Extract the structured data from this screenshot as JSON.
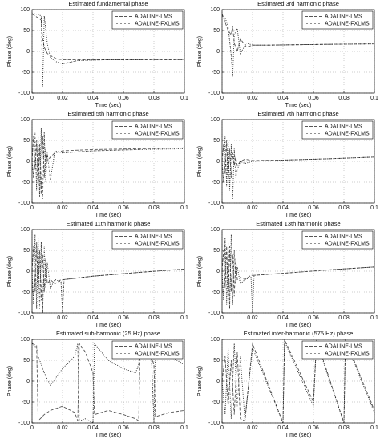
{
  "chart_data": [
    {
      "type": "line",
      "title": "Estimated fundamental phase",
      "xlabel": "Time (sec)",
      "ylabel": "Phase (deg)",
      "x": [
        0,
        0.002,
        0.004,
        0.006,
        0.007,
        0.008,
        0.01,
        0.012,
        0.016,
        0.02,
        0.03,
        0.05,
        0.07,
        0.1
      ],
      "series": [
        {
          "name": "ADALINE-LMS",
          "color": "#555555",
          "style": "dashed",
          "values": [
            90,
            85,
            80,
            75,
            30,
            10,
            -5,
            -10,
            -18,
            -20,
            -20,
            -20,
            -20,
            -20
          ]
        },
        {
          "name": "ADALINE-FXLMS",
          "color": "#222222",
          "style": "dotted",
          "values": [
            90,
            90,
            88,
            85,
            -85,
            85,
            20,
            -15,
            -25,
            -30,
            -22,
            -20,
            -20,
            -20
          ]
        }
      ],
      "xlim": [
        0,
        0.1
      ],
      "ylim": [
        -100,
        100
      ],
      "xticks": [
        0,
        0.02,
        0.04,
        0.06,
        0.08,
        0.1
      ],
      "yticks": [
        -100,
        -50,
        0,
        50,
        100
      ],
      "grid": true,
      "legend": "upper right"
    },
    {
      "type": "line",
      "title": "Estimated 3rd harmonic phase",
      "xlabel": "Time (sec)",
      "ylabel": "Phase (deg)",
      "x": [
        0,
        0.002,
        0.004,
        0.006,
        0.007,
        0.008,
        0.01,
        0.012,
        0.016,
        0.02,
        0.03,
        0.05,
        0.07,
        0.1
      ],
      "series": [
        {
          "name": "ADALINE-LMS",
          "color": "#555555",
          "style": "dashed",
          "values": [
            90,
            70,
            50,
            40,
            60,
            20,
            0,
            30,
            10,
            15,
            15,
            16,
            17,
            18
          ]
        },
        {
          "name": "ADALINE-FXLMS",
          "color": "#222222",
          "style": "dotted",
          "values": [
            85,
            80,
            60,
            -10,
            -60,
            40,
            55,
            -5,
            20,
            15,
            15,
            16,
            17,
            18
          ]
        }
      ],
      "xlim": [
        0,
        0.1
      ],
      "ylim": [
        -100,
        100
      ],
      "xticks": [
        0,
        0.02,
        0.04,
        0.06,
        0.08,
        0.1
      ],
      "yticks": [
        -100,
        -50,
        0,
        50,
        100
      ],
      "grid": true,
      "legend": "upper right"
    },
    {
      "type": "line",
      "title": "Estimated 5th harmonic phase",
      "xlabel": "Time (sec)",
      "ylabel": "Phase (deg)",
      "x": [
        0,
        0.001,
        0.002,
        0.003,
        0.004,
        0.005,
        0.006,
        0.007,
        0.008,
        0.009,
        0.01,
        0.012,
        0.015,
        0.02,
        0.04,
        0.07,
        0.1
      ],
      "series": [
        {
          "name": "ADALINE-LMS",
          "color": "#555555",
          "style": "dashed",
          "values": [
            0,
            60,
            -20,
            50,
            -60,
            40,
            -80,
            60,
            -40,
            30,
            0,
            10,
            20,
            25,
            28,
            30,
            32
          ]
        },
        {
          "name": "ADALINE-FXLMS",
          "color": "#222222",
          "style": "dotted",
          "values": [
            0,
            -40,
            70,
            -70,
            60,
            -85,
            80,
            -90,
            70,
            -50,
            20,
            -45,
            25,
            20,
            25,
            28,
            30
          ]
        }
      ],
      "xlim": [
        0,
        0.1
      ],
      "ylim": [
        -100,
        100
      ],
      "xticks": [
        0,
        0.02,
        0.04,
        0.06,
        0.08,
        0.1
      ],
      "yticks": [
        -100,
        -50,
        0,
        50,
        100
      ],
      "grid": true,
      "legend": "upper right"
    },
    {
      "type": "line",
      "title": "Estimated 7th harmonic phase",
      "xlabel": "Time (sec)",
      "ylabel": "Phase (deg)",
      "x": [
        0,
        0.001,
        0.002,
        0.003,
        0.004,
        0.005,
        0.006,
        0.007,
        0.008,
        0.009,
        0.01,
        0.012,
        0.015,
        0.02,
        0.04,
        0.07,
        0.1
      ],
      "series": [
        {
          "name": "ADALINE-LMS",
          "color": "#555555",
          "style": "dashed",
          "values": [
            0,
            40,
            -30,
            50,
            -50,
            30,
            -40,
            20,
            -10,
            10,
            -10,
            0,
            5,
            2,
            3,
            6,
            10
          ]
        },
        {
          "name": "ADALINE-FXLMS",
          "color": "#222222",
          "style": "dotted",
          "values": [
            0,
            -50,
            60,
            -60,
            50,
            -70,
            40,
            -90,
            30,
            -40,
            -20,
            0,
            -5,
            0,
            3,
            6,
            10
          ]
        }
      ],
      "xlim": [
        0,
        0.1
      ],
      "ylim": [
        -100,
        100
      ],
      "xticks": [
        0,
        0.02,
        0.04,
        0.06,
        0.08,
        0.1
      ],
      "yticks": [
        -100,
        -50,
        0,
        50,
        100
      ],
      "grid": true,
      "legend": "upper right"
    },
    {
      "type": "line",
      "title": "Estimated 11th harmonic phase",
      "xlabel": "Time (sec)",
      "ylabel": "Phase (deg)",
      "x": [
        0,
        0.001,
        0.002,
        0.003,
        0.004,
        0.005,
        0.006,
        0.007,
        0.008,
        0.009,
        0.01,
        0.012,
        0.015,
        0.019,
        0.02,
        0.021,
        0.04,
        0.07,
        0.1
      ],
      "series": [
        {
          "name": "ADALINE-LMS",
          "color": "#555555",
          "style": "dashed",
          "values": [
            0,
            60,
            -50,
            70,
            -60,
            50,
            -70,
            40,
            -50,
            30,
            -30,
            -20,
            -30,
            -20,
            -20,
            -20,
            -12,
            -3,
            5
          ]
        },
        {
          "name": "ADALINE-FXLMS",
          "color": "#222222",
          "style": "dotted",
          "values": [
            0,
            -80,
            90,
            -90,
            80,
            -90,
            70,
            -100,
            60,
            -40,
            20,
            -40,
            -20,
            -25,
            -100,
            -20,
            -12,
            -3,
            5
          ]
        }
      ],
      "xlim": [
        0,
        0.1
      ],
      "ylim": [
        -100,
        100
      ],
      "xticks": [
        0,
        0.02,
        0.04,
        0.06,
        0.08,
        0.1
      ],
      "yticks": [
        -100,
        -50,
        0,
        50,
        100
      ],
      "grid": true,
      "legend": "upper right"
    },
    {
      "type": "line",
      "title": "Estimated 13th harmonic phase",
      "xlabel": "Time (sec)",
      "ylabel": "Phase (deg)",
      "x": [
        0,
        0.001,
        0.002,
        0.003,
        0.004,
        0.005,
        0.006,
        0.007,
        0.008,
        0.009,
        0.01,
        0.012,
        0.015,
        0.019,
        0.02,
        0.021,
        0.04,
        0.07,
        0.1
      ],
      "series": [
        {
          "name": "ADALINE-LMS",
          "color": "#555555",
          "style": "dashed",
          "values": [
            0,
            50,
            -40,
            60,
            -70,
            60,
            -50,
            40,
            -60,
            30,
            -20,
            -15,
            -20,
            -10,
            -10,
            -10,
            -5,
            3,
            10
          ]
        },
        {
          "name": "ADALINE-FXLMS",
          "color": "#222222",
          "style": "dotted",
          "values": [
            0,
            -70,
            80,
            -80,
            70,
            -90,
            90,
            -80,
            50,
            -30,
            10,
            -30,
            -20,
            -15,
            -100,
            -10,
            -5,
            3,
            10
          ]
        }
      ],
      "xlim": [
        0,
        0.1
      ],
      "ylim": [
        -100,
        100
      ],
      "xticks": [
        0,
        0.02,
        0.04,
        0.06,
        0.08,
        0.1
      ],
      "yticks": [
        -100,
        -50,
        0,
        50,
        100
      ],
      "grid": true,
      "legend": "upper right"
    },
    {
      "type": "line",
      "title": "Estimated sub-harmonic (25 Hz) phase",
      "xlabel": "Time (sec)",
      "ylabel": "Phase (deg)",
      "x": [
        0,
        0.003,
        0.004,
        0.008,
        0.012,
        0.02,
        0.028,
        0.03,
        0.031,
        0.035,
        0.04,
        0.041,
        0.05,
        0.06,
        0.068,
        0.07,
        0.071,
        0.078,
        0.08,
        0.081,
        0.09,
        0.1
      ],
      "series": [
        {
          "name": "ADALINE-LMS",
          "color": "#555555",
          "style": "dashed",
          "values": [
            90,
            85,
            -95,
            -80,
            -70,
            -60,
            -75,
            -95,
            90,
            70,
            20,
            -80,
            -70,
            -80,
            -90,
            -95,
            90,
            60,
            40,
            -85,
            -75,
            -70
          ]
        },
        {
          "name": "ADALINE-FXLMS",
          "color": "#222222",
          "style": "dotted",
          "values": [
            90,
            80,
            60,
            20,
            -10,
            30,
            60,
            90,
            -95,
            -90,
            -100,
            90,
            50,
            30,
            20,
            40,
            80,
            90,
            -95,
            90,
            60,
            40
          ]
        }
      ],
      "xlim": [
        0,
        0.1
      ],
      "ylim": [
        -100,
        100
      ],
      "xticks": [
        0,
        0.02,
        0.04,
        0.06,
        0.08,
        0.1
      ],
      "yticks": [
        -100,
        -50,
        0,
        50,
        100
      ],
      "grid": true,
      "legend": "upper right"
    },
    {
      "type": "line",
      "title": "Estimated inter-harmonic (575 Hz) phase",
      "xlabel": "Time (sec)",
      "ylabel": "Phase (deg)",
      "x": [
        0,
        0.002,
        0.004,
        0.006,
        0.008,
        0.01,
        0.012,
        0.015,
        0.02,
        0.04,
        0.041,
        0.06,
        0.062,
        0.08,
        0.081,
        0.1
      ],
      "series": [
        {
          "name": "ADALINE-LMS",
          "color": "#555555",
          "style": "dashed",
          "values": [
            0,
            60,
            -60,
            50,
            -80,
            70,
            -90,
            -95,
            90,
            -100,
            100,
            -50,
            100,
            -100,
            100,
            -70
          ]
        },
        {
          "name": "ADALINE-FXLMS",
          "color": "#222222",
          "style": "dotted",
          "values": [
            0,
            -80,
            80,
            -90,
            90,
            -60,
            60,
            -95,
            80,
            -100,
            95,
            -60,
            95,
            -100,
            95,
            -75
          ]
        }
      ],
      "xlim": [
        0,
        0.1
      ],
      "ylim": [
        -100,
        100
      ],
      "xticks": [
        0,
        0.02,
        0.04,
        0.06,
        0.08,
        0.1
      ],
      "yticks": [
        -100,
        -50,
        0,
        50,
        100
      ],
      "grid": true,
      "legend": "upper right"
    }
  ]
}
